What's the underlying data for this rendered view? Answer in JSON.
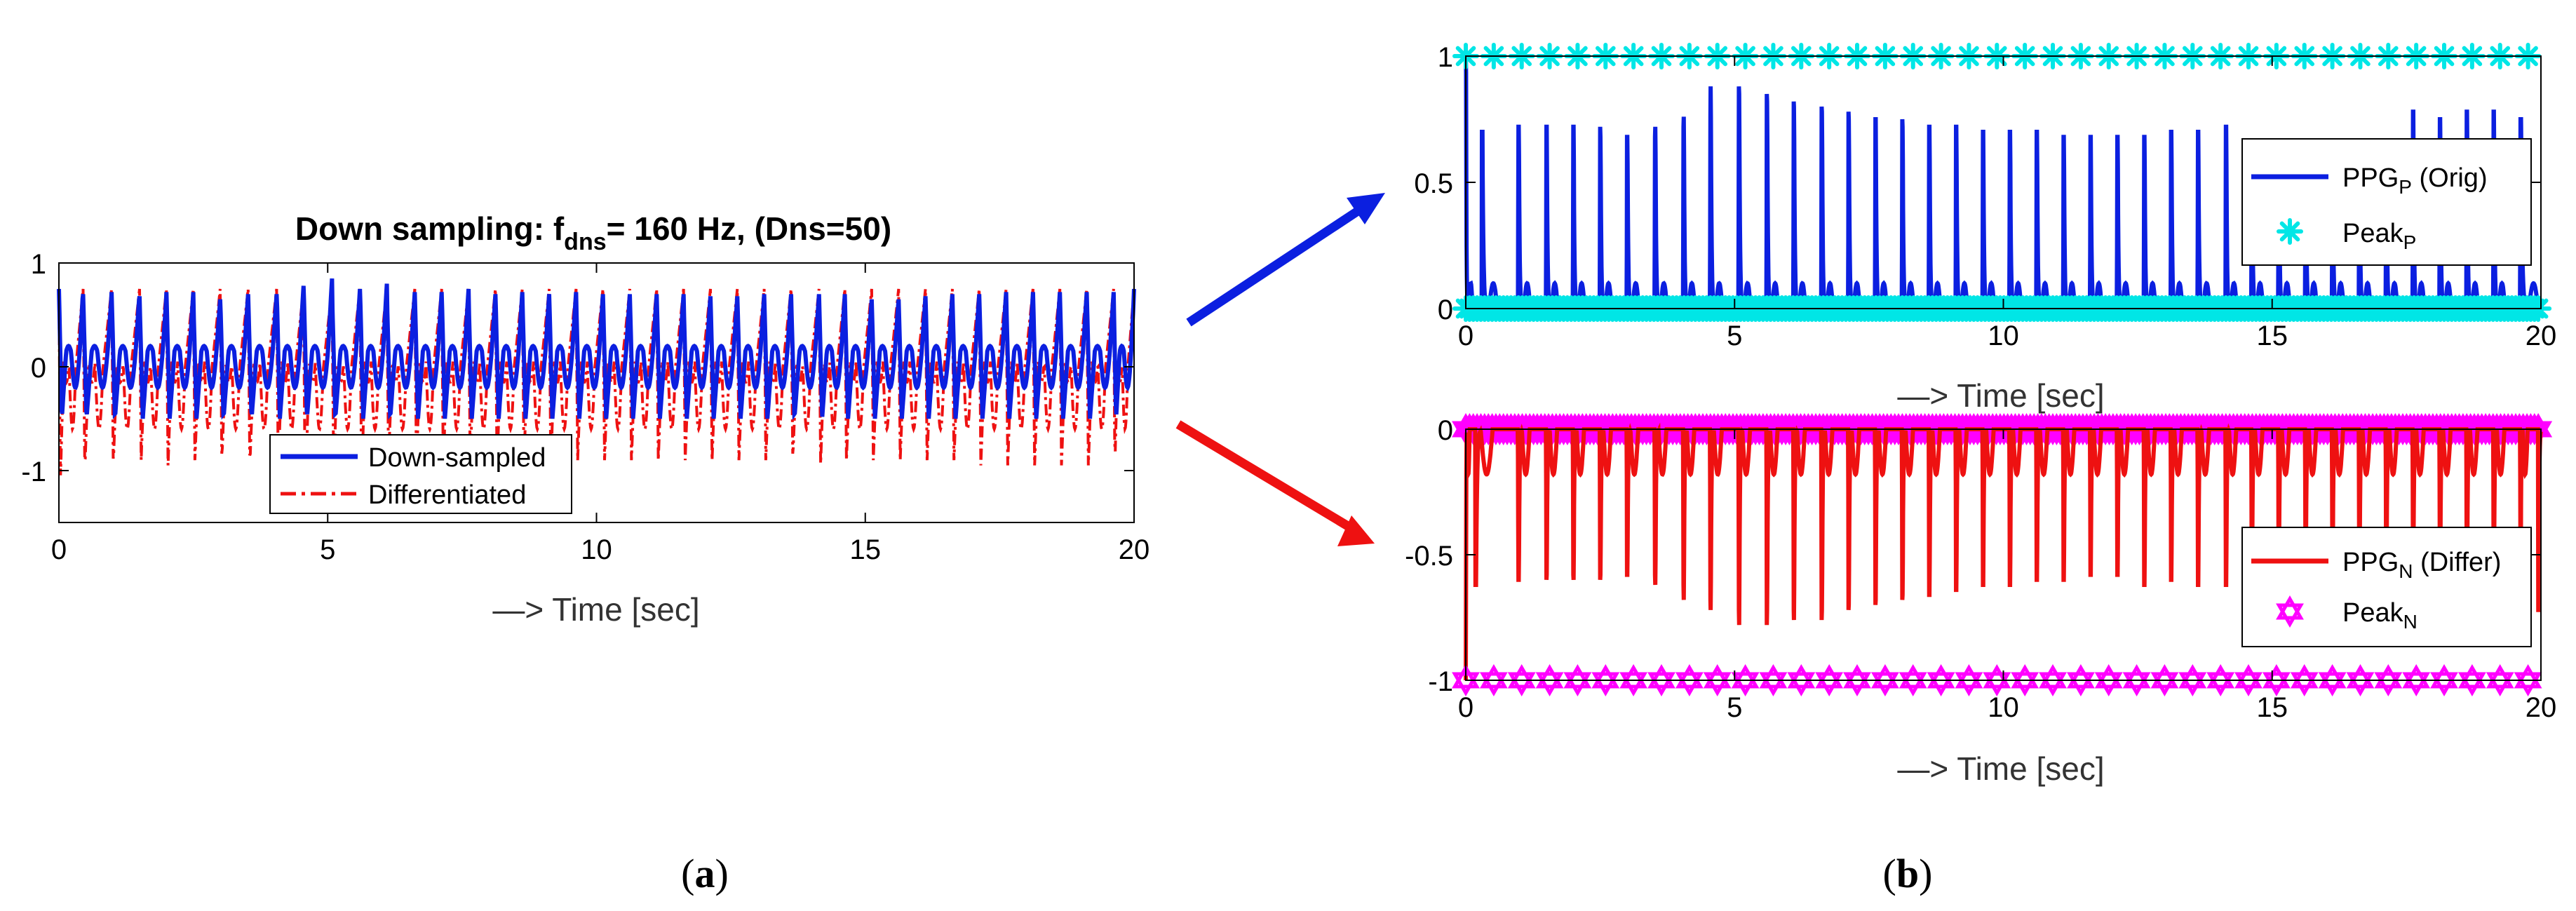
{
  "colors": {
    "blue": "#0b1fe0",
    "red": "#ee1111",
    "cyan": "#00e6e6",
    "magenta": "#ff00ff",
    "axis": "#000000",
    "text": "#000000"
  },
  "panel_labels": {
    "a": "a",
    "b": "b"
  },
  "chart_data": [
    {
      "id": "panel-a",
      "type": "line",
      "title_main": "Down sampling: f",
      "title_sub": "dns",
      "title_rest": "= 160 Hz, (Dns=50)",
      "xlabel": "—> Time [sec]",
      "ylabel": "",
      "xlim": [
        0,
        20
      ],
      "ylim": [
        -1.5,
        1
      ],
      "xticks": [
        0,
        5,
        10,
        15,
        20
      ],
      "yticks": [
        -1,
        0,
        1
      ],
      "grid": false,
      "legend_position": "lower-center",
      "legend": [
        {
          "label": "Down-sampled",
          "style": "solid",
          "color": "blue"
        },
        {
          "label": "Differentiated",
          "style": "dashdot",
          "color": "red"
        }
      ],
      "series": [
        {
          "name": "Down-sampled",
          "color": "blue",
          "style": "solid",
          "peak_times": [
            0.0,
            0.45,
            0.98,
            1.5,
            2.0,
            2.5,
            3.0,
            3.52,
            4.05,
            4.55,
            5.08,
            5.6,
            6.1,
            6.62,
            7.12,
            7.62,
            8.12,
            8.62,
            9.12,
            9.62,
            10.12,
            10.62,
            11.12,
            11.62,
            12.12,
            12.62,
            13.12,
            13.62,
            14.14,
            14.62,
            15.12,
            15.62,
            16.12,
            16.62,
            17.12,
            17.62,
            18.12,
            18.62,
            19.12,
            19.62,
            20.0
          ],
          "peak_values": [
            0.75,
            0.7,
            0.72,
            0.68,
            0.72,
            0.65,
            0.7,
            0.7,
            0.78,
            0.85,
            0.75,
            0.8,
            0.72,
            0.72,
            0.75,
            0.7,
            0.72,
            0.7,
            0.72,
            0.7,
            0.7,
            0.7,
            0.7,
            0.68,
            0.68,
            0.7,
            0.7,
            0.7,
            0.7,
            0.65,
            0.65,
            0.68,
            0.7,
            0.7,
            0.72,
            0.7,
            0.72,
            0.72,
            0.72,
            0.72,
            0.75
          ],
          "trough_value": -0.5,
          "baseline": 0.15
        },
        {
          "name": "Differentiated",
          "color": "red",
          "style": "dashdot",
          "trough_values": [
            -1.1,
            -1.0,
            -0.95,
            -0.9,
            -0.95,
            -0.9,
            -0.9,
            -0.95,
            -1.0,
            -1.3,
            -1.0,
            -1.1,
            -0.9,
            -0.95,
            -0.95,
            -0.9,
            -0.95,
            -0.9,
            -0.95,
            -0.9,
            -0.9,
            -0.9,
            -0.9,
            -0.9,
            -0.9,
            -0.9,
            -0.9,
            -0.9,
            -0.95,
            -0.9,
            -0.9,
            -0.9,
            -0.9,
            -0.9,
            -0.95,
            -0.95,
            -0.95,
            -0.95,
            -0.95,
            -0.95,
            -1.0
          ],
          "peak_value": 0.75
        }
      ]
    },
    {
      "id": "panel-b-top",
      "type": "line",
      "xlabel": "—> Time [sec]",
      "xlim": [
        0,
        20
      ],
      "ylim": [
        0,
        1
      ],
      "xticks": [
        0,
        5,
        10,
        15,
        20
      ],
      "yticks": [
        0,
        0.5,
        1
      ],
      "grid": false,
      "legend_position": "right",
      "legend": [
        {
          "label": "PPG",
          "sub": "P",
          "suffix": " (Orig)",
          "style": "solid",
          "color": "blue"
        },
        {
          "label": "Peak",
          "sub": "P",
          "suffix": "",
          "style": "marker-asterisk",
          "color": "cyan"
        }
      ],
      "series": [
        {
          "name": "PPG_P (Orig)",
          "color": "blue",
          "peak_times": [
            0.0,
            0.3,
            0.98,
            1.5,
            2.0,
            2.5,
            3.0,
            3.52,
            4.05,
            4.55,
            5.08,
            5.6,
            6.1,
            6.62,
            7.12,
            7.62,
            8.12,
            8.62,
            9.12,
            9.62,
            10.12,
            10.62,
            11.12,
            11.62,
            12.12,
            12.62,
            13.12,
            13.62,
            14.14,
            14.62,
            15.12,
            15.62,
            16.12,
            16.62,
            17.12,
            17.62,
            18.12,
            18.62,
            19.12,
            19.62
          ],
          "peak_values": [
            1.0,
            0.7,
            0.72,
            0.72,
            0.72,
            0.68,
            0.68,
            0.72,
            0.76,
            0.88,
            0.85,
            0.82,
            0.8,
            0.78,
            0.75,
            0.75,
            0.72,
            0.72,
            0.72,
            0.7,
            0.7,
            0.7,
            0.68,
            0.68,
            0.68,
            0.68,
            0.7,
            0.7,
            0.72,
            0.65,
            0.65,
            0.65,
            0.65,
            0.65,
            0.65,
            0.78,
            0.75,
            0.78,
            0.78,
            0.75
          ],
          "secondary_bump": 0.1
        },
        {
          "name": "Peak_P",
          "color": "cyan",
          "marker": "asterisk",
          "top_level": 1,
          "bottom_level": 0
        }
      ]
    },
    {
      "id": "panel-b-bottom",
      "type": "line",
      "xlabel": "—> Time [sec]",
      "xlim": [
        0,
        20
      ],
      "ylim": [
        -1,
        0
      ],
      "xticks": [
        0,
        5,
        10,
        15,
        20
      ],
      "yticks": [
        -1,
        -0.5,
        0
      ],
      "grid": false,
      "legend_position": "right",
      "legend": [
        {
          "label": "PPG",
          "sub": "N",
          "suffix": " (Differ)",
          "style": "solid",
          "color": "red"
        },
        {
          "label": "Peak",
          "sub": "N",
          "suffix": "",
          "style": "marker-hexagram",
          "color": "magenta"
        }
      ],
      "series": [
        {
          "name": "PPG_N (Differ)",
          "color": "red",
          "trough_times": [
            0.0,
            0.18,
            0.98,
            1.5,
            2.0,
            2.5,
            3.0,
            3.52,
            4.05,
            4.55,
            5.08,
            5.6,
            6.1,
            6.62,
            7.12,
            7.62,
            8.12,
            8.62,
            9.12,
            9.62,
            10.12,
            10.62,
            11.12,
            11.62,
            12.12,
            12.62,
            13.12,
            13.62,
            14.14,
            14.62,
            15.12,
            15.62,
            16.12,
            16.62,
            17.12,
            17.62,
            18.12,
            18.62,
            19.12,
            19.62,
            19.95
          ],
          "trough_values": [
            -1.0,
            -0.62,
            -0.6,
            -0.58,
            -0.6,
            -0.58,
            -0.58,
            -0.62,
            -0.68,
            -0.72,
            -0.78,
            -0.72,
            -0.76,
            -0.72,
            -0.7,
            -0.68,
            -0.66,
            -0.66,
            -0.64,
            -0.62,
            -0.62,
            -0.6,
            -0.6,
            -0.58,
            -0.58,
            -0.62,
            -0.6,
            -0.62,
            -0.62,
            -0.58,
            -0.58,
            -0.58,
            -0.58,
            -0.58,
            -0.62,
            -0.6,
            -0.62,
            -0.62,
            -0.6,
            -0.6,
            -0.72
          ],
          "secondary_dip": -0.18
        },
        {
          "name": "Peak_N",
          "color": "magenta",
          "marker": "hexagram",
          "top_level": 0,
          "bottom_level": -1
        }
      ]
    }
  ]
}
